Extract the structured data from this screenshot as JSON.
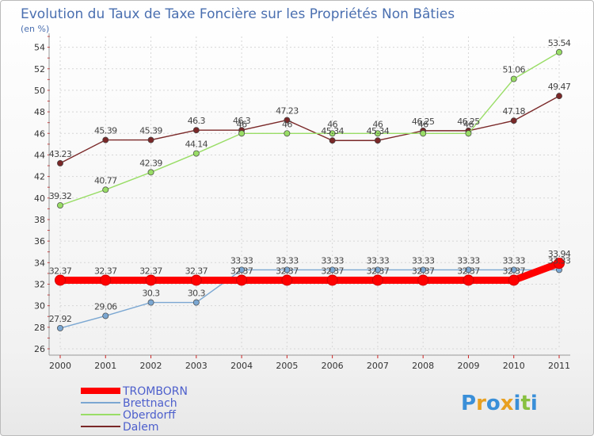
{
  "chart_data": {
    "type": "line",
    "title": "Evolution du Taux de Taxe Foncière sur les Propriétés Non Bâties",
    "unit_label": "(en %)",
    "x": [
      "2000",
      "2001",
      "2002",
      "2003",
      "2004",
      "2005",
      "2006",
      "2007",
      "2008",
      "2009",
      "2010",
      "2011"
    ],
    "ylim": [
      26,
      55
    ],
    "yticks": [
      26,
      28,
      30,
      32,
      34,
      36,
      38,
      40,
      42,
      44,
      46,
      48,
      50,
      52,
      54
    ],
    "series": [
      {
        "name": "TROMBORN",
        "color": "#ff0000",
        "values": [
          32.37,
          32.37,
          32.37,
          32.37,
          32.37,
          32.37,
          32.37,
          32.37,
          32.37,
          32.37,
          32.37,
          33.94
        ],
        "labels": [
          "32.37",
          "32.37",
          "32.37",
          "32.37",
          "32.37",
          "32.37",
          "32.37",
          "32.37",
          "32.37",
          "32.37",
          "32.37",
          "33.94"
        ]
      },
      {
        "name": "Brettnach",
        "color": "#7ba7d2",
        "values": [
          27.92,
          29.06,
          30.3,
          30.3,
          33.33,
          33.33,
          33.33,
          33.33,
          33.33,
          33.33,
          33.33,
          33.33
        ],
        "labels": [
          "27.92",
          "29.06",
          "30.3",
          "30.3",
          "33.33",
          "33.33",
          "33.33",
          "33.33",
          "33.33",
          "33.33",
          "33.33",
          "33.33"
        ]
      },
      {
        "name": "Oberdorff",
        "color": "#99dd66",
        "values": [
          39.32,
          40.77,
          42.39,
          44.14,
          46,
          46,
          46,
          46,
          46,
          46,
          51.06,
          53.54
        ],
        "labels": [
          "39.32",
          "40.77",
          "42.39",
          "44.14",
          "46",
          "46",
          "46",
          "46",
          "46",
          "46",
          "51.06",
          "53.54"
        ]
      },
      {
        "name": "Dalem",
        "color": "#7a2828",
        "values": [
          43.23,
          45.39,
          45.39,
          46.3,
          46.3,
          47.23,
          45.34,
          45.34,
          46.25,
          46.25,
          47.18,
          49.47
        ],
        "labels": [
          "43.23",
          "45.39",
          "45.39",
          "46.3",
          "46.3",
          "47.23",
          "45.34",
          "45.34",
          "46.25",
          "46.25",
          "47.18",
          "49.47"
        ]
      }
    ]
  },
  "logo": {
    "letters": [
      "P",
      "r",
      "o",
      "x",
      "i",
      "t",
      "i"
    ],
    "colors": [
      "#3a8fd8",
      "#e8a020",
      "#3a8fd8",
      "#e8a020",
      "#3a8fd8",
      "#88c040",
      "#3a8fd8"
    ]
  }
}
